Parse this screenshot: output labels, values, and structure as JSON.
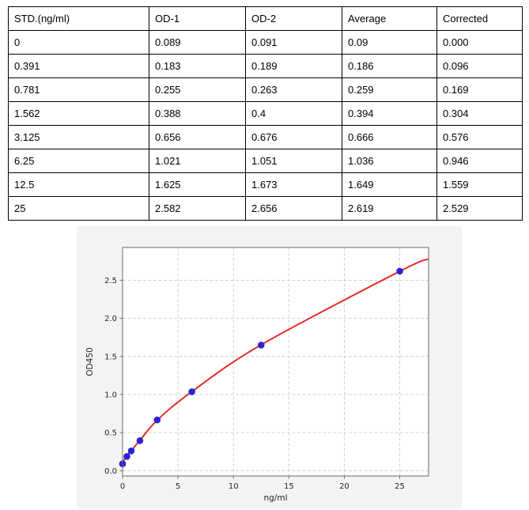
{
  "table": {
    "columns": [
      "STD.(ng/ml)",
      "OD-1",
      "OD-2",
      "Average",
      "Corrected"
    ],
    "rows": [
      [
        "0",
        "0.089",
        "0.091",
        "0.09",
        "0.000"
      ],
      [
        "0.391",
        "0.183",
        "0.189",
        "0.186",
        "0.096"
      ],
      [
        "0.781",
        "0.255",
        "0.263",
        "0.259",
        "0.169"
      ],
      [
        "1.562",
        "0.388",
        "0.4",
        "0.394",
        "0.304"
      ],
      [
        "3.125",
        "0.656",
        "0.676",
        "0.666",
        "0.576"
      ],
      [
        "6.25",
        "1.021",
        "1.051",
        "1.036",
        "0.946"
      ],
      [
        "12.5",
        "1.625",
        "1.673",
        "1.649",
        "1.559"
      ],
      [
        "25",
        "2.582",
        "2.656",
        "2.619",
        "2.529"
      ]
    ]
  },
  "chart_data": {
    "type": "scatter",
    "title": "",
    "xlabel": "ng/ml",
    "ylabel": "OD450",
    "x": [
      0,
      0.391,
      0.781,
      1.562,
      3.125,
      6.25,
      12.5,
      25
    ],
    "y": [
      0.09,
      0.186,
      0.259,
      0.394,
      0.666,
      1.036,
      1.649,
      2.619
    ],
    "fit_line": {
      "description": "smooth standard-curve fit through the points",
      "points_x": [
        0,
        0.391,
        0.781,
        1.562,
        3.125,
        6.25,
        12.5,
        25,
        27.6
      ],
      "points_y": [
        0.115,
        0.19,
        0.262,
        0.397,
        0.663,
        1.038,
        1.652,
        2.617,
        2.78
      ]
    },
    "xlim": [
      0,
      27.6
    ],
    "ylim": [
      -0.07,
      2.93
    ],
    "xticks": {
      "values": [
        0,
        5,
        10,
        15,
        20,
        25
      ],
      "labels": [
        "0",
        "5",
        "10",
        "15",
        "20",
        "25"
      ]
    },
    "yticks": {
      "values": [
        0,
        0.5,
        1,
        1.5,
        2,
        2.5
      ],
      "labels": [
        "0.0",
        "0.5",
        "1.0",
        "1.5",
        "2.0",
        "2.5"
      ]
    },
    "grid": true,
    "legend": "none",
    "colors": {
      "marker": "#2b22d5",
      "fit_line": "#e52521",
      "figure_bg": "#f3f3f3",
      "plot_bg": "#ffffff",
      "grid": "#cccccc",
      "spine": "#6b6b6b",
      "tick_text": "#262626"
    }
  }
}
